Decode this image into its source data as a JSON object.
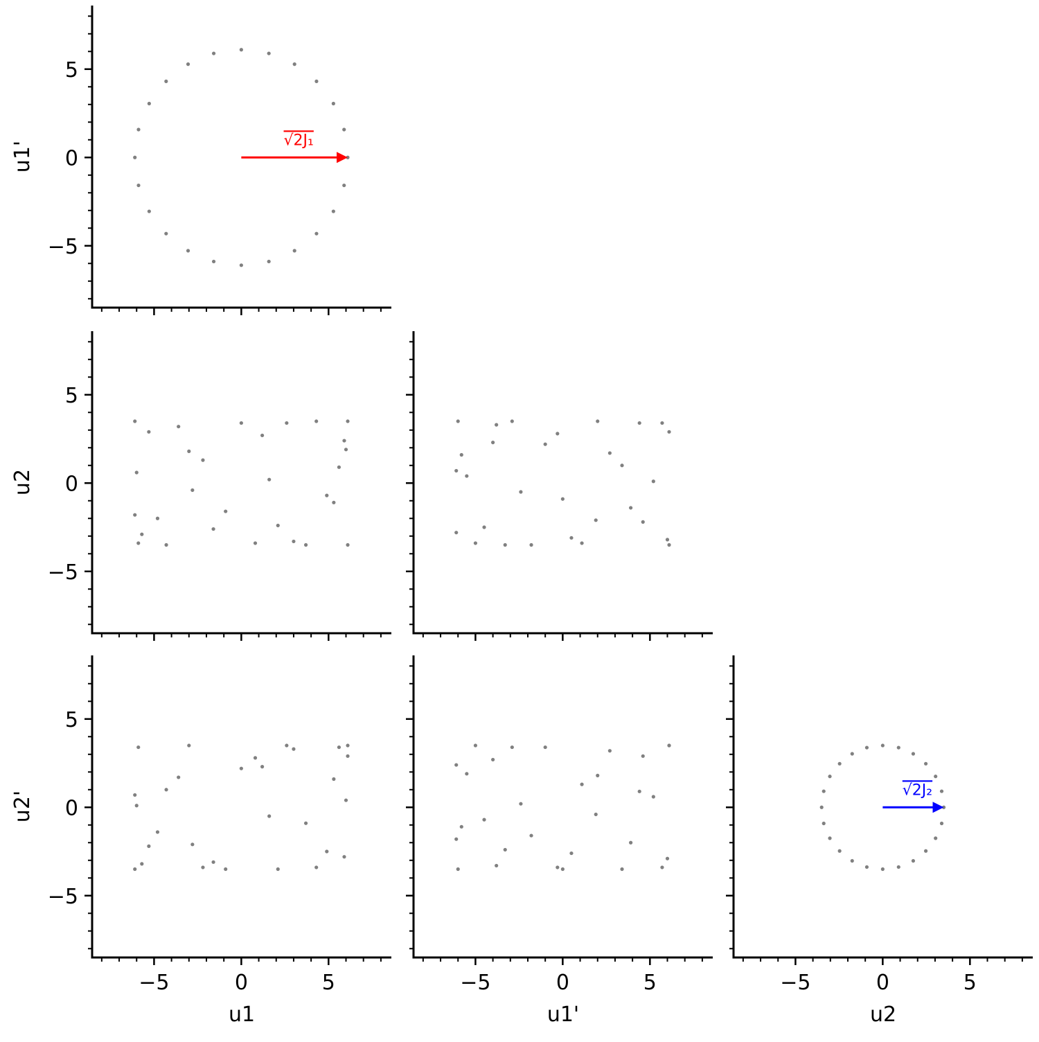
{
  "chart_data": [
    {
      "type": "scatter",
      "ylabel": "u1'",
      "color": "#808080",
      "xlim": [
        -8.55,
        8.6
      ],
      "ylim": [
        -8.5,
        8.6
      ],
      "xticks": [
        -5,
        0,
        5
      ],
      "xticklabels": false,
      "yticks": [
        {
          "value": -5,
          "label": "−5"
        },
        0,
        5
      ],
      "minor_ticks": [
        -8,
        -7,
        -6,
        -4,
        -3,
        -2,
        -1,
        1,
        2,
        3,
        4,
        6,
        7,
        8
      ],
      "x": [
        6.1,
        5.89,
        5.28,
        4.31,
        3.05,
        1.58,
        0,
        -1.58,
        -3.05,
        -4.31,
        -5.28,
        -5.89,
        -6.1,
        -5.89,
        -5.28,
        -4.31,
        -3.05,
        -1.58,
        0,
        1.58,
        3.05,
        4.31,
        5.28,
        5.89
      ],
      "y": [
        0,
        1.58,
        3.05,
        4.31,
        5.28,
        5.89,
        6.1,
        5.89,
        5.28,
        4.31,
        3.05,
        1.58,
        0,
        -1.58,
        -3.05,
        -4.31,
        -5.28,
        -5.89,
        -6.1,
        -5.89,
        -5.28,
        -4.31,
        -3.05,
        -1.58
      ],
      "arrow": {
        "x": 0,
        "y": 0,
        "dx": 6.1,
        "label": "√2J₁",
        "color": "#ff0000"
      }
    },
    {
      "type": "scatter",
      "ylabel": "u2",
      "color": "#808080",
      "xlim": [
        -8.55,
        8.6
      ],
      "ylim": [
        -8.5,
        8.6
      ],
      "xticks": [
        -5,
        0,
        5
      ],
      "xticklabels": false,
      "yticks": [
        {
          "value": -5,
          "label": "−5"
        },
        0,
        5
      ],
      "minor_ticks": [
        -8,
        -7,
        -6,
        -4,
        -3,
        -2,
        -1,
        1,
        2,
        3,
        4,
        6,
        7,
        8
      ],
      "x": [
        -6.1,
        -5.9,
        -5.3,
        -4.3,
        -3.0,
        -1.6,
        0,
        1.6,
        3.0,
        4.3,
        5.3,
        5.9,
        6.1,
        -6.0,
        -4.8,
        -2.2,
        0.8,
        2.6,
        4.9,
        6.0,
        -5.7,
        -3.6,
        -0.9,
        1.2,
        3.7,
        5.6,
        -6.1,
        -2.8,
        2.1,
        6.1
      ],
      "y": [
        3.5,
        -3.4,
        2.9,
        -3.5,
        1.8,
        -2.6,
        3.4,
        0.2,
        -3.3,
        3.5,
        -1.1,
        2.4,
        -3.5,
        0.6,
        -2.0,
        1.3,
        -3.4,
        3.4,
        -0.7,
        1.9,
        -2.9,
        3.2,
        -1.6,
        2.7,
        -3.5,
        0.9,
        -1.8,
        -0.4,
        -2.4,
        3.5
      ]
    },
    {
      "type": "scatter",
      "color": "#808080",
      "xlim": [
        -8.55,
        8.6
      ],
      "ylim": [
        -8.5,
        8.6
      ],
      "xticks": [
        -5,
        0,
        5
      ],
      "xticklabels": false,
      "yticks": [
        -5,
        0,
        5
      ],
      "yticklabels": false,
      "minor_ticks": [
        -8,
        -7,
        -6,
        -4,
        -3,
        -2,
        -1,
        1,
        2,
        3,
        4,
        6,
        7,
        8
      ],
      "x": [
        6.1,
        5.7,
        4.6,
        3.4,
        2.0,
        0.5,
        -1.0,
        -2.4,
        -3.8,
        -5.0,
        -5.8,
        -6.1,
        -6.0,
        5.2,
        3.9,
        1.1,
        -0.3,
        -2.9,
        -4.5,
        -5.5,
        6.0,
        2.7,
        -1.8,
        -4.0,
        0.0,
        4.4,
        -6.1,
        1.9,
        -3.3,
        6.1
      ],
      "y": [
        -3.5,
        3.4,
        -2.2,
        1.0,
        3.5,
        -3.1,
        2.2,
        -0.5,
        3.3,
        -3.4,
        1.6,
        -2.8,
        3.5,
        0.1,
        -1.4,
        -3.4,
        2.8,
        3.5,
        -2.5,
        0.4,
        -3.2,
        1.7,
        -3.5,
        2.3,
        -0.9,
        3.4,
        0.7,
        -2.1,
        -3.5,
        2.9
      ]
    },
    {
      "type": "scatter",
      "xlabel": "u1",
      "ylabel": "u2'",
      "color": "#808080",
      "xlim": [
        -8.55,
        8.6
      ],
      "ylim": [
        -8.5,
        8.6
      ],
      "xticks": [
        {
          "value": -5,
          "label": "−5"
        },
        0,
        5
      ],
      "yticks": [
        {
          "value": -5,
          "label": "−5"
        },
        0,
        5
      ],
      "minor_ticks": [
        -8,
        -7,
        -6,
        -4,
        -3,
        -2,
        -1,
        1,
        2,
        3,
        4,
        6,
        7,
        8
      ],
      "x": [
        -6.1,
        -5.9,
        -5.3,
        -4.3,
        -3.0,
        -1.6,
        0,
        1.6,
        3.0,
        4.3,
        5.3,
        5.9,
        6.1,
        -6.0,
        -4.8,
        -2.2,
        0.8,
        2.6,
        4.9,
        6.0,
        -5.7,
        -3.6,
        -0.9,
        1.2,
        3.7,
        5.6,
        -6.1,
        -2.8,
        2.1,
        6.1
      ],
      "y": [
        -3.5,
        3.4,
        -2.2,
        1.0,
        3.5,
        -3.1,
        2.2,
        -0.5,
        3.3,
        -3.4,
        1.6,
        -2.8,
        3.5,
        0.1,
        -1.4,
        -3.4,
        2.8,
        3.5,
        -2.5,
        0.4,
        -3.2,
        1.7,
        -3.5,
        2.3,
        -0.9,
        3.4,
        0.7,
        -2.1,
        -3.5,
        2.9
      ]
    },
    {
      "type": "scatter",
      "xlabel": "u1'",
      "color": "#808080",
      "xlim": [
        -8.55,
        8.6
      ],
      "ylim": [
        -8.5,
        8.6
      ],
      "xticks": [
        {
          "value": -5,
          "label": "−5"
        },
        0,
        5
      ],
      "yticks": [
        -5,
        0,
        5
      ],
      "yticklabels": false,
      "minor_ticks": [
        -8,
        -7,
        -6,
        -4,
        -3,
        -2,
        -1,
        1,
        2,
        3,
        4,
        6,
        7,
        8
      ],
      "x": [
        6.1,
        5.7,
        4.6,
        3.4,
        2.0,
        0.5,
        -1.0,
        -2.4,
        -3.8,
        -5.0,
        -5.8,
        -6.1,
        -6.0,
        5.2,
        3.9,
        1.1,
        -0.3,
        -2.9,
        -4.5,
        -5.5,
        6.0,
        2.7,
        -1.8,
        -4.0,
        0.0,
        4.4,
        -6.1,
        1.9,
        -3.3,
        6.1
      ],
      "y": [
        3.5,
        -3.4,
        2.9,
        -3.5,
        1.8,
        -2.6,
        3.4,
        0.2,
        -3.3,
        3.5,
        -1.1,
        2.4,
        -3.5,
        0.6,
        -2.0,
        1.3,
        -3.4,
        3.4,
        -0.7,
        1.9,
        -2.9,
        3.2,
        -1.6,
        2.7,
        -3.5,
        0.9,
        -1.8,
        -0.4,
        -2.4,
        3.5
      ]
    },
    {
      "type": "scatter",
      "xlabel": "u2",
      "color": "#808080",
      "xlim": [
        -8.55,
        8.6
      ],
      "ylim": [
        -8.5,
        8.6
      ],
      "xticks": [
        {
          "value": -5,
          "label": "−5"
        },
        0,
        5
      ],
      "yticks": [
        -5,
        0,
        5
      ],
      "yticklabels": false,
      "minor_ticks": [
        -8,
        -7,
        -6,
        -4,
        -3,
        -2,
        -1,
        1,
        2,
        3,
        4,
        6,
        7,
        8
      ],
      "x": [
        3.5,
        3.38,
        3.03,
        2.47,
        1.75,
        0.91,
        0,
        -0.91,
        -1.75,
        -2.47,
        -3.03,
        -3.38,
        -3.5,
        -3.38,
        -3.03,
        -2.47,
        -1.75,
        -0.91,
        0,
        0.91,
        1.75,
        2.47,
        3.03,
        3.38
      ],
      "y": [
        0,
        0.91,
        1.75,
        2.47,
        3.03,
        3.38,
        3.5,
        3.38,
        3.03,
        2.47,
        1.75,
        0.91,
        0,
        -0.91,
        -1.75,
        -2.47,
        -3.03,
        -3.38,
        -3.5,
        -3.38,
        -3.03,
        -2.47,
        -1.75,
        -0.91
      ],
      "arrow": {
        "x": 0,
        "y": 0,
        "dx": 3.5,
        "label": "√2J₂",
        "color": "#0000ff"
      }
    }
  ]
}
